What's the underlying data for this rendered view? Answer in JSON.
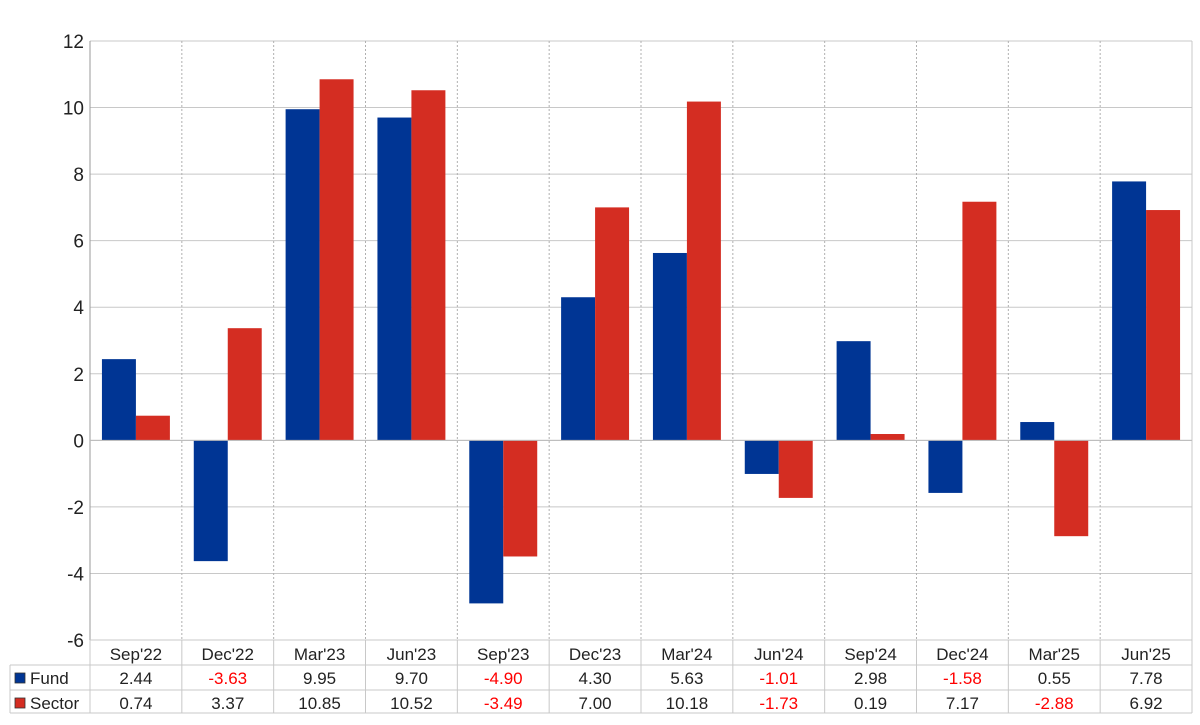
{
  "chart_data": {
    "type": "bar",
    "categories": [
      "Sep'22",
      "Dec'22",
      "Mar'23",
      "Jun'23",
      "Sep'23",
      "Dec'23",
      "Mar'24",
      "Jun'24",
      "Sep'24",
      "Dec'24",
      "Mar'25",
      "Jun'25"
    ],
    "series": [
      {
        "name": "Fund",
        "color": "#003594",
        "values": [
          2.44,
          -3.63,
          9.95,
          9.7,
          -4.9,
          4.3,
          5.63,
          -1.01,
          2.98,
          -1.58,
          0.55,
          7.78
        ],
        "labels": [
          "2.44",
          "-3.63",
          "9.95",
          "9.70",
          "-4.90",
          "4.30",
          "5.63",
          "-1.01",
          "2.98",
          "-1.58",
          "0.55",
          "7.78"
        ]
      },
      {
        "name": "Sector",
        "color": "#d42d22",
        "values": [
          0.74,
          3.37,
          10.85,
          10.52,
          -3.49,
          7.0,
          10.18,
          -1.73,
          0.19,
          7.17,
          -2.88,
          6.92
        ],
        "labels": [
          "0.74",
          "3.37",
          "10.85",
          "10.52",
          "-3.49",
          "7.00",
          "10.18",
          "-1.73",
          "0.19",
          "7.17",
          "-2.88",
          "6.92"
        ]
      }
    ],
    "ylim": [
      -6,
      12
    ],
    "yticks": [
      "-6",
      "-4",
      "-2",
      "0",
      "2",
      "4",
      "6",
      "8",
      "10",
      "12"
    ],
    "grid": true,
    "legend": "data-table",
    "negative_label_color": "#ff0000",
    "title": "",
    "xlabel": "",
    "ylabel": ""
  }
}
